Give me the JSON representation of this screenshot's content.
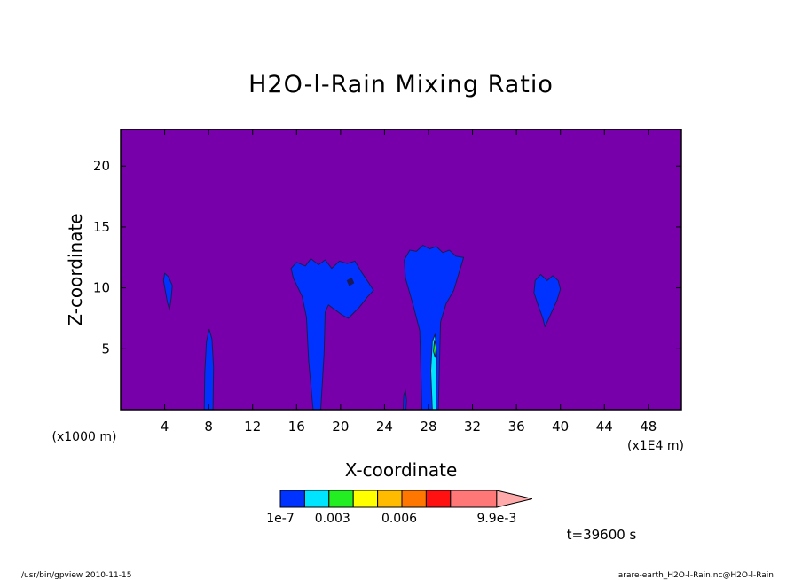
{
  "chart_data": {
    "type": "heatmap",
    "title": "H2O-l-Rain Mixing Ratio",
    "xlabel": "X-coordinate",
    "ylabel": "Z-coordinate",
    "x_unit_left": "(x1000 m)",
    "x_unit_right": "(x1E4 m)",
    "xlim": [
      0,
      51
    ],
    "ylim": [
      0,
      23
    ],
    "x_ticks": [
      4,
      8,
      12,
      16,
      20,
      24,
      28,
      32,
      36,
      40,
      44,
      48
    ],
    "y_ticks": [
      5,
      10,
      15,
      20
    ],
    "background_color": "#7700aa",
    "colorbar": {
      "colors": [
        "#0033ff",
        "#00e5ff",
        "#22ee22",
        "#ffff00",
        "#ffbb00",
        "#ff7700",
        "#ff1111",
        "#ff7777",
        "#ffaaaa"
      ],
      "labels": [
        "1e-7",
        "0.003",
        "0.006",
        "9.9e-3"
      ],
      "label_positions": [
        0,
        2,
        4,
        7
      ]
    },
    "features": [
      {
        "name": "cell-x4",
        "x_range": [
          3.9,
          4.7
        ],
        "z_range": [
          8.2,
          11.2
        ],
        "level": "1e-7"
      },
      {
        "name": "cell-x8",
        "x_range": [
          7.6,
          8.4
        ],
        "z_range": [
          0,
          6.6
        ],
        "level": "1e-7"
      },
      {
        "name": "cell-x16-22",
        "x_range": [
          15.5,
          23
        ],
        "z_range": [
          0,
          12.4
        ],
        "level": "1e-7"
      },
      {
        "name": "cell-x26-31",
        "x_range": [
          25.8,
          31.2
        ],
        "z_range": [
          0,
          13.5
        ],
        "level": "0.003"
      },
      {
        "name": "cell-x38-40",
        "x_range": [
          37.5,
          40
        ],
        "z_range": [
          6.8,
          11
        ],
        "level": "1e-7"
      }
    ]
  },
  "time_label": "t=39600 s",
  "footer_left": "/usr/bin/gpview  2010-11-15",
  "footer_right": "arare-earth_H2O-l-Rain.nc@H2O-l-Rain"
}
